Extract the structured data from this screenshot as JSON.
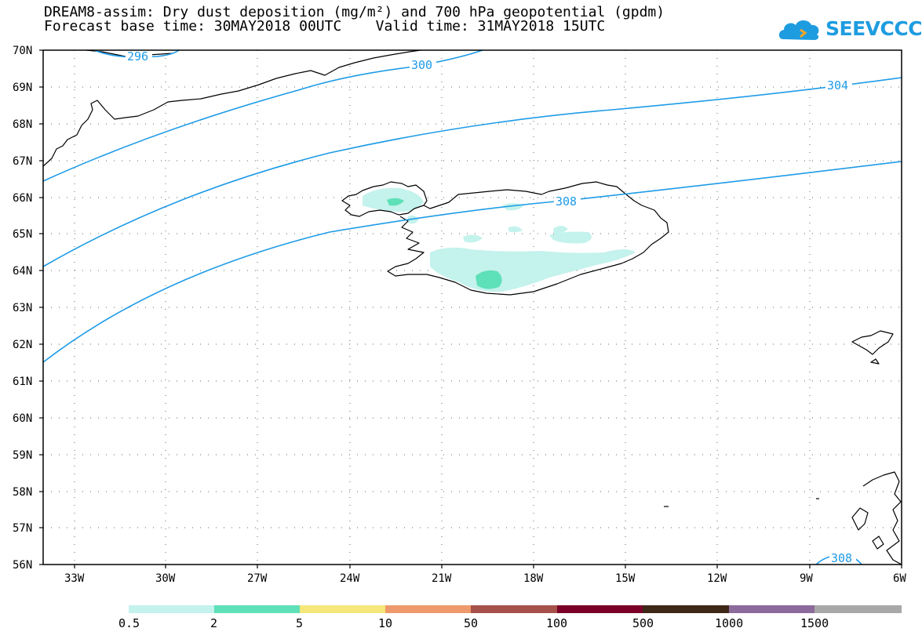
{
  "title": {
    "line1": "DREAM8-assim: Dry dust deposition (mg/m²) and 700 hPa geopotential (gpdm)",
    "line2": "Forecast base time: 30MAY2018 00UTC    Valid time: 31MAY2018 15UTC"
  },
  "logo": {
    "text": "SEEVCCC",
    "color": "#1e9ce0"
  },
  "map": {
    "lat_labels": [
      "70N",
      "69N",
      "68N",
      "67N",
      "66N",
      "65N",
      "64N",
      "63N",
      "62N",
      "61N",
      "60N",
      "59N",
      "58N",
      "57N",
      "56N"
    ],
    "lon_labels": [
      "33W",
      "30W",
      "27W",
      "24W",
      "21W",
      "18W",
      "15W",
      "12W",
      "9W",
      "6W"
    ],
    "contour_color": "#1e9be6",
    "contour_labels": [
      "296",
      "300",
      "304",
      "308",
      "308"
    ]
  },
  "colorbar": {
    "colors": [
      "#c4f2ec",
      "#5ee0b8",
      "#f5e77a",
      "#ee9a6c",
      "#a6514a",
      "#7a0028",
      "#3e2818",
      "#8c6a9c",
      "#a8a8a8"
    ],
    "tick_labels": [
      "0.5",
      "2",
      "5",
      "10",
      "50",
      "100",
      "500",
      "1000",
      "1500"
    ]
  }
}
